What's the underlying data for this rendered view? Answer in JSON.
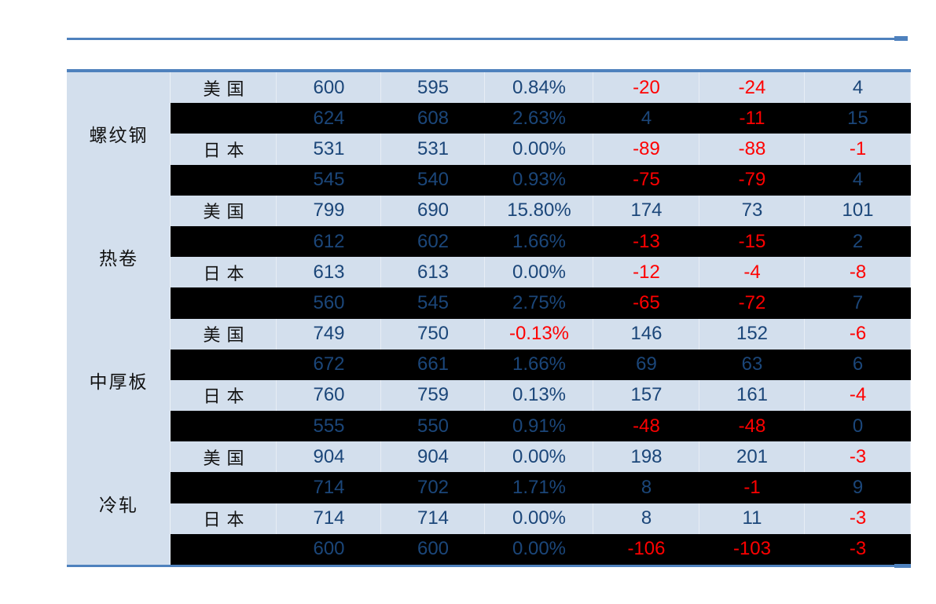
{
  "page": {
    "background": "#ffffff",
    "description_note": "steel price comparison table, US vs Japan, four products"
  },
  "decor": {
    "line_color": "#4E81BD"
  },
  "table": {
    "colors": {
      "light_row_bg": "#D3DFED",
      "dark_row_bg": "#000000",
      "border_blue": "#4E81BD",
      "text_blue": "#1B4679",
      "text_red": "#FF0000",
      "product_text": "#111111"
    },
    "groups": [
      {
        "product": "螺纹钢",
        "rows": [
          {
            "shade": "light",
            "region": "美国",
            "values": [
              {
                "v": "600",
                "c": "blue"
              },
              {
                "v": "595",
                "c": "blue"
              },
              {
                "v": "0.84%",
                "c": "blue"
              },
              {
                "v": "-20",
                "c": "red"
              },
              {
                "v": "-24",
                "c": "red"
              },
              {
                "v": "4",
                "c": "blue"
              }
            ]
          },
          {
            "shade": "dark",
            "region": "",
            "values": [
              {
                "v": "624",
                "c": "blue"
              },
              {
                "v": "608",
                "c": "blue"
              },
              {
                "v": "2.63%",
                "c": "blue"
              },
              {
                "v": "4",
                "c": "blue"
              },
              {
                "v": "-11",
                "c": "red"
              },
              {
                "v": "15",
                "c": "blue"
              }
            ]
          },
          {
            "shade": "light",
            "region": "日本",
            "values": [
              {
                "v": "531",
                "c": "blue"
              },
              {
                "v": "531",
                "c": "blue"
              },
              {
                "v": "0.00%",
                "c": "blue"
              },
              {
                "v": "-89",
                "c": "red"
              },
              {
                "v": "-88",
                "c": "red"
              },
              {
                "v": "-1",
                "c": "red"
              }
            ]
          },
          {
            "shade": "dark",
            "region": "",
            "values": [
              {
                "v": "545",
                "c": "blue"
              },
              {
                "v": "540",
                "c": "blue"
              },
              {
                "v": "0.93%",
                "c": "blue"
              },
              {
                "v": "-75",
                "c": "red"
              },
              {
                "v": "-79",
                "c": "red"
              },
              {
                "v": "4",
                "c": "blue"
              }
            ]
          }
        ]
      },
      {
        "product": "热卷",
        "rows": [
          {
            "shade": "light",
            "region": "美国",
            "values": [
              {
                "v": "799",
                "c": "blue"
              },
              {
                "v": "690",
                "c": "blue"
              },
              {
                "v": "15.80%",
                "c": "blue"
              },
              {
                "v": "174",
                "c": "blue"
              },
              {
                "v": "73",
                "c": "blue"
              },
              {
                "v": "101",
                "c": "blue"
              }
            ]
          },
          {
            "shade": "dark",
            "region": "",
            "values": [
              {
                "v": "612",
                "c": "blue"
              },
              {
                "v": "602",
                "c": "blue"
              },
              {
                "v": "1.66%",
                "c": "blue"
              },
              {
                "v": "-13",
                "c": "red"
              },
              {
                "v": "-15",
                "c": "red"
              },
              {
                "v": "2",
                "c": "blue"
              }
            ]
          },
          {
            "shade": "light",
            "region": "日本",
            "values": [
              {
                "v": "613",
                "c": "blue"
              },
              {
                "v": "613",
                "c": "blue"
              },
              {
                "v": "0.00%",
                "c": "blue"
              },
              {
                "v": "-12",
                "c": "red"
              },
              {
                "v": "-4",
                "c": "red"
              },
              {
                "v": "-8",
                "c": "red"
              }
            ]
          },
          {
            "shade": "dark",
            "region": "",
            "values": [
              {
                "v": "560",
                "c": "blue"
              },
              {
                "v": "545",
                "c": "blue"
              },
              {
                "v": "2.75%",
                "c": "blue"
              },
              {
                "v": "-65",
                "c": "red"
              },
              {
                "v": "-72",
                "c": "red"
              },
              {
                "v": "7",
                "c": "blue"
              }
            ]
          }
        ]
      },
      {
        "product": "中厚板",
        "rows": [
          {
            "shade": "light",
            "region": "美国",
            "values": [
              {
                "v": "749",
                "c": "blue"
              },
              {
                "v": "750",
                "c": "blue"
              },
              {
                "v": "-0.13%",
                "c": "red"
              },
              {
                "v": "146",
                "c": "blue"
              },
              {
                "v": "152",
                "c": "blue"
              },
              {
                "v": "-6",
                "c": "red"
              }
            ]
          },
          {
            "shade": "dark",
            "region": "",
            "values": [
              {
                "v": "672",
                "c": "blue"
              },
              {
                "v": "661",
                "c": "blue"
              },
              {
                "v": "1.66%",
                "c": "blue"
              },
              {
                "v": "69",
                "c": "blue"
              },
              {
                "v": "63",
                "c": "blue"
              },
              {
                "v": "6",
                "c": "blue"
              }
            ]
          },
          {
            "shade": "light",
            "region": "日本",
            "values": [
              {
                "v": "760",
                "c": "blue"
              },
              {
                "v": "759",
                "c": "blue"
              },
              {
                "v": "0.13%",
                "c": "blue"
              },
              {
                "v": "157",
                "c": "blue"
              },
              {
                "v": "161",
                "c": "blue"
              },
              {
                "v": "-4",
                "c": "red"
              }
            ]
          },
          {
            "shade": "dark",
            "region": "",
            "values": [
              {
                "v": "555",
                "c": "blue"
              },
              {
                "v": "550",
                "c": "blue"
              },
              {
                "v": "0.91%",
                "c": "blue"
              },
              {
                "v": "-48",
                "c": "red"
              },
              {
                "v": "-48",
                "c": "red"
              },
              {
                "v": "0",
                "c": "blue"
              }
            ]
          }
        ]
      },
      {
        "product": "冷轧",
        "rows": [
          {
            "shade": "light",
            "region": "美国",
            "values": [
              {
                "v": "904",
                "c": "blue"
              },
              {
                "v": "904",
                "c": "blue"
              },
              {
                "v": "0.00%",
                "c": "blue"
              },
              {
                "v": "198",
                "c": "blue"
              },
              {
                "v": "201",
                "c": "blue"
              },
              {
                "v": "-3",
                "c": "red"
              }
            ]
          },
          {
            "shade": "dark",
            "region": "",
            "values": [
              {
                "v": "714",
                "c": "blue"
              },
              {
                "v": "702",
                "c": "blue"
              },
              {
                "v": "1.71%",
                "c": "blue"
              },
              {
                "v": "8",
                "c": "blue"
              },
              {
                "v": "-1",
                "c": "red"
              },
              {
                "v": "9",
                "c": "blue"
              }
            ]
          },
          {
            "shade": "light",
            "region": "日本",
            "values": [
              {
                "v": "714",
                "c": "blue"
              },
              {
                "v": "714",
                "c": "blue"
              },
              {
                "v": "0.00%",
                "c": "blue"
              },
              {
                "v": "8",
                "c": "blue"
              },
              {
                "v": "11",
                "c": "blue"
              },
              {
                "v": "-3",
                "c": "red"
              }
            ]
          },
          {
            "shade": "dark",
            "region": "",
            "values": [
              {
                "v": "600",
                "c": "blue"
              },
              {
                "v": "600",
                "c": "blue"
              },
              {
                "v": "0.00%",
                "c": "blue"
              },
              {
                "v": "-106",
                "c": "red"
              },
              {
                "v": "-103",
                "c": "red"
              },
              {
                "v": "-3",
                "c": "red"
              }
            ]
          }
        ]
      }
    ]
  },
  "chart_data": {
    "type": "table",
    "headers_visible": false,
    "row_groups": [
      {
        "group": "螺纹钢",
        "rows": [
          [
            "美国",
            600,
            595,
            "0.84%",
            -20,
            -24,
            4
          ],
          [
            "",
            624,
            608,
            "2.63%",
            4,
            -11,
            15
          ],
          [
            "日本",
            531,
            531,
            "0.00%",
            -89,
            -88,
            -1
          ],
          [
            "",
            545,
            540,
            "0.93%",
            -75,
            -79,
            4
          ]
        ]
      },
      {
        "group": "热卷",
        "rows": [
          [
            "美国",
            799,
            690,
            "15.80%",
            174,
            73,
            101
          ],
          [
            "",
            612,
            602,
            "1.66%",
            -13,
            -15,
            2
          ],
          [
            "日本",
            613,
            613,
            "0.00%",
            -12,
            -4,
            -8
          ],
          [
            "",
            560,
            545,
            "2.75%",
            -65,
            -72,
            7
          ]
        ]
      },
      {
        "group": "中厚板",
        "rows": [
          [
            "美国",
            749,
            750,
            "-0.13%",
            146,
            152,
            -6
          ],
          [
            "",
            672,
            661,
            "1.66%",
            69,
            63,
            6
          ],
          [
            "日本",
            760,
            759,
            "0.13%",
            157,
            161,
            -4
          ],
          [
            "",
            555,
            550,
            "0.91%",
            -48,
            -48,
            0
          ]
        ]
      },
      {
        "group": "冷轧",
        "rows": [
          [
            "美国",
            904,
            904,
            "0.00%",
            198,
            201,
            -3
          ],
          [
            "",
            714,
            702,
            "1.71%",
            8,
            -1,
            9
          ],
          [
            "日本",
            714,
            714,
            "0.00%",
            8,
            11,
            -3
          ],
          [
            "",
            600,
            600,
            "0.00%",
            -106,
            -103,
            -3
          ]
        ]
      }
    ],
    "layout_hints": {
      "row_striping": [
        "light-blue",
        "black"
      ],
      "negative_values_red": true,
      "positive_values_dark_blue": true
    }
  }
}
